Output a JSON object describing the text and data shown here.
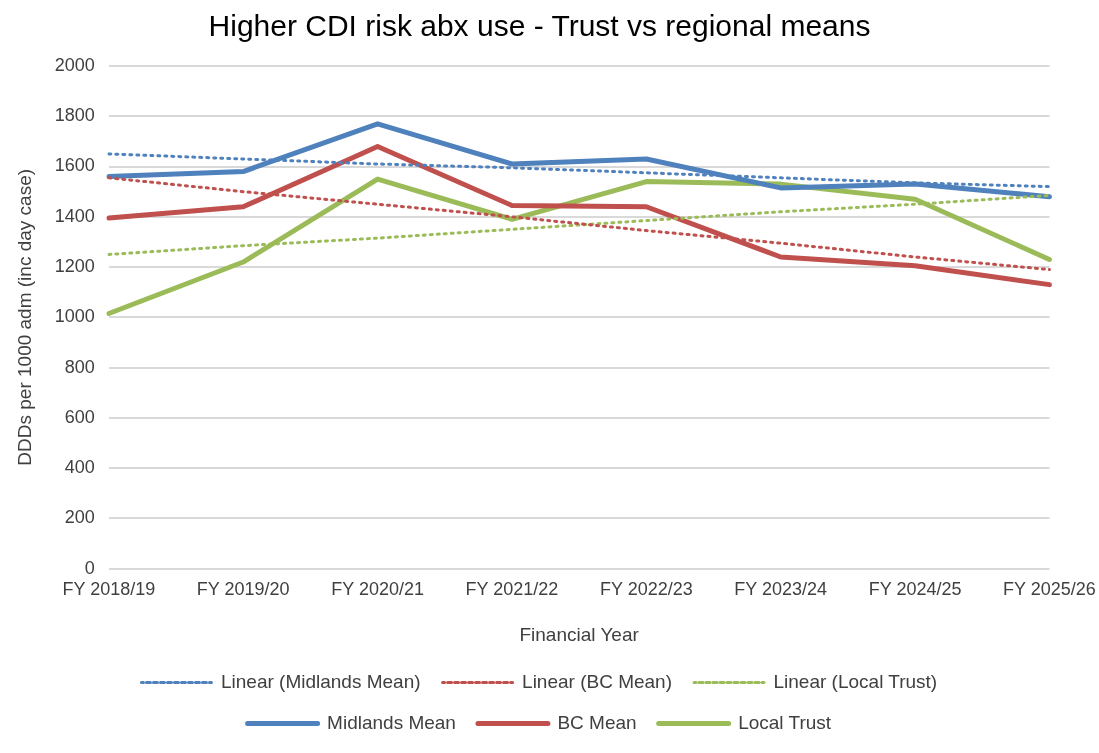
{
  "chart_data": {
    "type": "line",
    "title": "Higher CDI risk abx use - Trust vs regional means",
    "xlabel": "Financial Year",
    "ylabel": "DDDs per 1000 adm (inc day case)",
    "categories": [
      "FY 2018/19",
      "FY 2019/20",
      "FY 2020/21",
      "FY 2021/22",
      "FY 2022/23",
      "FY 2023/24",
      "FY 2024/25",
      "FY 2025/26"
    ],
    "series": [
      {
        "name": "Midlands Mean",
        "color": "#4f81bd",
        "values": [
          1560,
          1580,
          1770,
          1610,
          1630,
          1515,
          1530,
          1480
        ]
      },
      {
        "name": "BC Mean",
        "color": "#c0504d",
        "values": [
          1395,
          1440,
          1680,
          1445,
          1440,
          1240,
          1205,
          1130
        ]
      },
      {
        "name": "Local Trust",
        "color": "#9bbb59",
        "values": [
          1015,
          1220,
          1550,
          1390,
          1540,
          1530,
          1470,
          1230
        ]
      },
      {
        "name": "Linear (Midlands Mean)",
        "color": "#4f81bd",
        "line_style": "dotted",
        "values": [
          1650,
          1630,
          1610,
          1595,
          1575,
          1555,
          1535,
          1520
        ]
      },
      {
        "name": "Linear (BC Mean)",
        "color": "#c0504d",
        "line_style": "dotted",
        "values": [
          1555,
          1500,
          1450,
          1400,
          1345,
          1295,
          1240,
          1190
        ]
      },
      {
        "name": "Linear (Local Trust)",
        "color": "#9bbb59",
        "line_style": "dotted",
        "values": [
          1250,
          1285,
          1315,
          1350,
          1385,
          1420,
          1450,
          1485
        ]
      }
    ],
    "ylim": [
      0,
      2000
    ],
    "yticks": [
      0,
      200,
      400,
      600,
      800,
      1000,
      1200,
      1400,
      1600,
      1800,
      2000
    ],
    "grid": "y",
    "legend": "bottom",
    "marker": "none"
  }
}
